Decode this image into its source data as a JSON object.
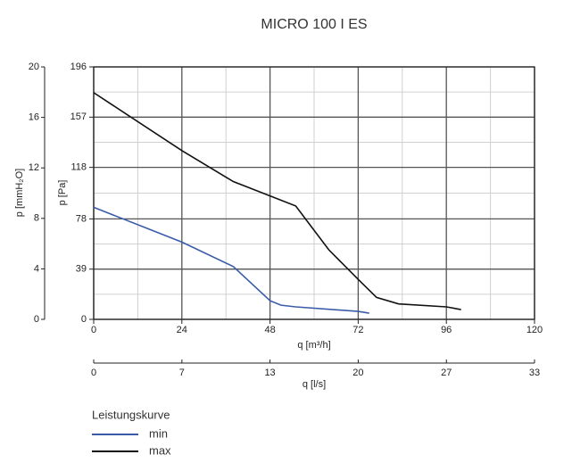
{
  "chart_data": {
    "type": "line",
    "title": "MICRO 100 I ES",
    "x_label": "q [m³/h]",
    "x2_label": "q [l/s]",
    "y_label": "p [Pa]",
    "y2_label": "p [mmH₂O]",
    "legend_title": "Leistungskurve",
    "xlim": [
      0,
      120
    ],
    "xticks": [
      0,
      24,
      48,
      72,
      96,
      120
    ],
    "x2lim": [
      0,
      33.33
    ],
    "x2ticks": [
      0,
      {
        "value": 6.67,
        "label": "7"
      },
      {
        "value": 13.33,
        "label": "13"
      },
      20,
      {
        "value": 26.67,
        "label": "27"
      },
      {
        "value": 33.33,
        "label": "33"
      }
    ],
    "ylim": [
      0,
      196
    ],
    "yticks": [
      0,
      39,
      78,
      118,
      157,
      196
    ],
    "y2lim": [
      0,
      20
    ],
    "y2ticks": [
      0,
      4,
      8,
      12,
      16,
      20
    ],
    "grid": true,
    "series": [
      {
        "name": "min",
        "color": "#3a5ca8",
        "x": [
          0,
          24,
          38,
          48,
          51,
          55,
          72,
          75
        ],
        "values": [
          87,
          60,
          41,
          14.5,
          11,
          9.7,
          6.2,
          4.8
        ]
      },
      {
        "name": "max",
        "color": "#111111",
        "x": [
          0,
          24,
          38,
          55,
          64,
          72,
          77,
          83,
          96,
          100
        ],
        "values": [
          176,
          131,
          107,
          88,
          54,
          31,
          17,
          12,
          9.7,
          7.6
        ]
      }
    ]
  }
}
